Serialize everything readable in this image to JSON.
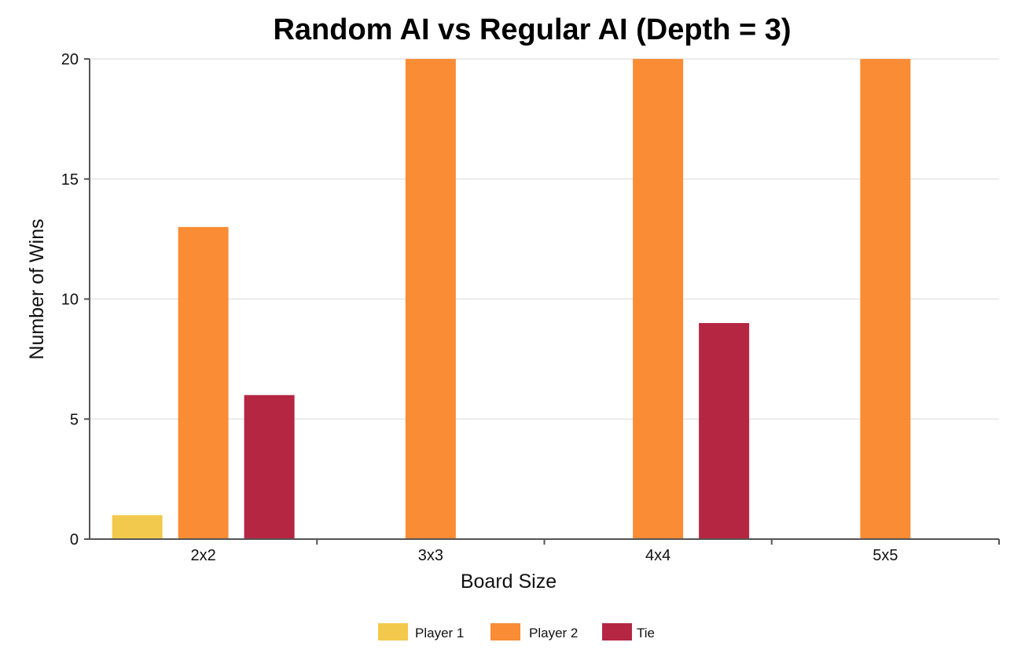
{
  "chart_data": {
    "type": "bar",
    "title": "Random AI vs Regular AI (Depth = 3)",
    "xlabel": "Board Size",
    "ylabel": "Number of Wins",
    "categories": [
      "2x2",
      "3x3",
      "4x4",
      "5x5"
    ],
    "series": [
      {
        "name": "Player 1",
        "color": "#f2c94c",
        "values": [
          1,
          0,
          0,
          0
        ]
      },
      {
        "name": "Player 2",
        "color": "#f98c35",
        "values": [
          13,
          20,
          20,
          20
        ]
      },
      {
        "name": "Tie",
        "color": "#b52642",
        "values": [
          6,
          0,
          9,
          0
        ]
      }
    ],
    "ylim": [
      0,
      20
    ],
    "yticks": [
      "0",
      "5",
      "10",
      "15",
      "20"
    ],
    "grid": true,
    "legend_position": "bottom-center"
  }
}
